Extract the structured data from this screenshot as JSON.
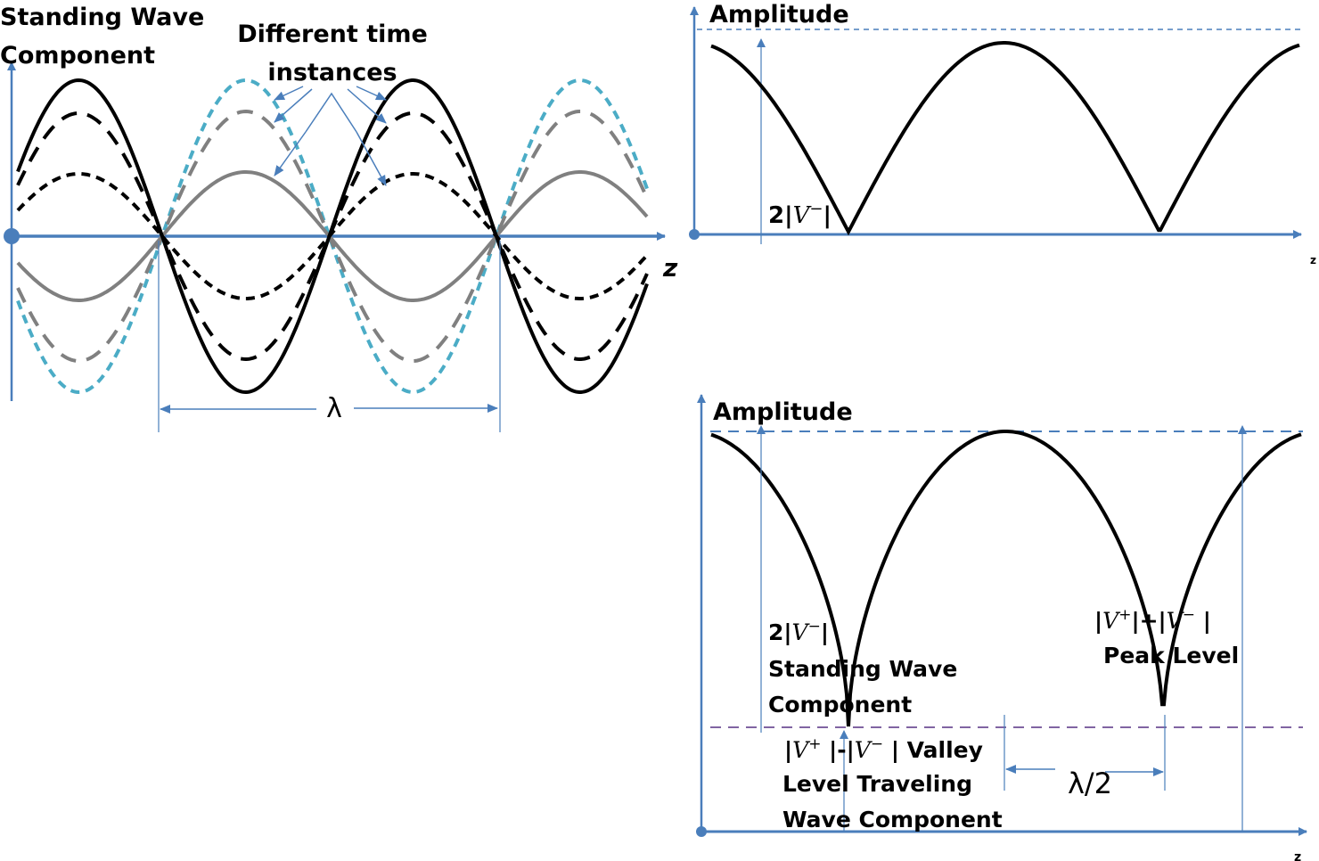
{
  "colors": {
    "axis": "#4a7ebb",
    "curve_black": "#000000",
    "curve_grey": "#808080",
    "curve_cyan": "#4bacc6",
    "valley_line": "#8064a2",
    "peak_line": "#4a7ebb"
  },
  "left_panel": {
    "title_line1": "Standing Wave",
    "title_line2": "Component",
    "annotation_line1": "Different time",
    "annotation_line2": "instances",
    "axis_label": "z",
    "wavelength_label": "λ"
  },
  "top_right_panel": {
    "y_label": "Amplitude",
    "amp_label_prefix": "2|",
    "amp_label_var": "V",
    "amp_label_sup": "−",
    "amp_label_suffix": "|",
    "axis_label": "z"
  },
  "bottom_right_panel": {
    "y_label": "Amplitude",
    "standing_label": {
      "prefix": "2|",
      "var": "V",
      "sup": "−",
      "suffix": "|",
      "line2": "Standing Wave",
      "line3": "Component"
    },
    "peak_label": {
      "p1": "|",
      "v1": "V",
      "s1": "+",
      "mid": "|+|",
      "v2": "V",
      "s2": "−",
      "end": " |",
      "line2": "Peak Level"
    },
    "valley_label": {
      "p1": "|",
      "v1": "V",
      "s1": "+",
      "mid": " |-|",
      "v2": "V",
      "s2": "−",
      "end": " | Valley",
      "line2": "Level Traveling",
      "line3": "Wave Component"
    },
    "half_wavelength_label": "λ/2",
    "axis_label": "z"
  }
}
